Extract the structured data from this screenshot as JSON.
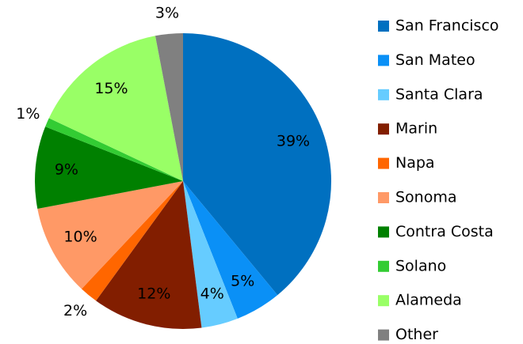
{
  "chart_data": {
    "type": "pie",
    "categories": [
      "San Francisco",
      "San Mateo",
      "Santa Clara",
      "Marin",
      "Napa",
      "Sonoma",
      "Contra Costa",
      "Solano",
      "Alameda",
      "Other"
    ],
    "values": [
      39,
      5,
      4,
      12,
      2,
      10,
      9,
      1,
      15,
      3
    ],
    "value_labels": [
      "39%",
      "5%",
      "4%",
      "12%",
      "2%",
      "10%",
      "9%",
      "1%",
      "15%",
      "3%"
    ],
    "colors": [
      "#0070c0",
      "#0a90f6",
      "#66ccff",
      "#821e00",
      "#ff6600",
      "#ff9966",
      "#008000",
      "#33cc33",
      "#99ff66",
      "#808080"
    ],
    "legend": "right"
  }
}
